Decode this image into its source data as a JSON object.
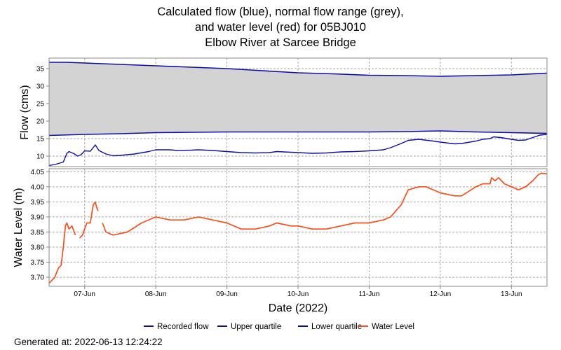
{
  "title_lines": [
    "Calculated flow (blue), normal flow range (grey),",
    "and water level (red) for 05BJ010",
    "Elbow River at Sarcee Bridge"
  ],
  "footer": {
    "generated": "Generated at: 2022-06-13 12:24:22"
  },
  "colors": {
    "flow": "#0d0dab",
    "range": "#d3d3d3",
    "level": "#fc4d1a",
    "grid": "#aaaaaa"
  },
  "chart_data": [
    {
      "type": "line",
      "ylabel": "Flow (cms)",
      "ylim": [
        7,
        38
      ],
      "yticks": [
        10,
        15,
        20,
        25,
        30,
        35
      ],
      "grid": true,
      "series": [
        {
          "name": "Upper quartile",
          "values": [
            [
              6.5,
              36.8
            ],
            [
              6.75,
              36.8
            ],
            [
              7.0,
              36.6
            ],
            [
              7.5,
              36.2
            ],
            [
              8.0,
              35.8
            ],
            [
              8.5,
              35.4
            ],
            [
              9.0,
              35.0
            ],
            [
              9.5,
              34.4
            ],
            [
              10.0,
              33.8
            ],
            [
              10.5,
              33.5
            ],
            [
              11.0,
              33.1
            ],
            [
              11.5,
              33.0
            ],
            [
              12.0,
              32.8
            ],
            [
              12.5,
              33.0
            ],
            [
              13.0,
              33.2
            ],
            [
              13.5,
              33.7
            ]
          ]
        },
        {
          "name": "Lower quartile",
          "values": [
            [
              6.5,
              15.9
            ],
            [
              7.0,
              16.2
            ],
            [
              7.5,
              16.4
            ],
            [
              8.0,
              16.7
            ],
            [
              8.5,
              16.8
            ],
            [
              9.0,
              16.9
            ],
            [
              9.5,
              16.9
            ],
            [
              10.0,
              16.9
            ],
            [
              10.5,
              16.9
            ],
            [
              11.0,
              16.9
            ],
            [
              11.5,
              17.0
            ],
            [
              12.0,
              17.2
            ],
            [
              12.5,
              16.9
            ],
            [
              13.0,
              16.7
            ],
            [
              13.5,
              16.5
            ]
          ]
        },
        {
          "name": "Recorded flow",
          "values": [
            [
              6.5,
              7.3
            ],
            [
              6.6,
              7.7
            ],
            [
              6.7,
              8.3
            ],
            [
              6.75,
              10.8
            ],
            [
              6.78,
              11.3
            ],
            [
              6.85,
              10.7
            ],
            [
              6.9,
              10.0
            ],
            [
              6.95,
              10.4
            ],
            [
              7.0,
              11.5
            ],
            [
              7.08,
              11.4
            ],
            [
              7.15,
              13.2
            ],
            [
              7.2,
              11.6
            ],
            [
              7.3,
              10.6
            ],
            [
              7.4,
              10.1
            ],
            [
              7.5,
              10.2
            ],
            [
              7.7,
              10.6
            ],
            [
              7.9,
              11.3
            ],
            [
              8.0,
              11.8
            ],
            [
              8.2,
              11.8
            ],
            [
              8.3,
              11.6
            ],
            [
              8.5,
              11.7
            ],
            [
              8.6,
              11.8
            ],
            [
              8.8,
              11.6
            ],
            [
              9.0,
              11.3
            ],
            [
              9.2,
              11.0
            ],
            [
              9.4,
              10.9
            ],
            [
              9.6,
              11.0
            ],
            [
              9.7,
              11.3
            ],
            [
              10.0,
              11.0
            ],
            [
              10.2,
              10.8
            ],
            [
              10.4,
              10.9
            ],
            [
              10.6,
              11.2
            ],
            [
              10.8,
              11.3
            ],
            [
              11.0,
              11.5
            ],
            [
              11.2,
              11.8
            ],
            [
              11.3,
              12.4
            ],
            [
              11.45,
              13.6
            ],
            [
              11.55,
              14.5
            ],
            [
              11.7,
              14.8
            ],
            [
              11.9,
              14.3
            ],
            [
              12.0,
              14.0
            ],
            [
              12.2,
              13.5
            ],
            [
              12.3,
              13.6
            ],
            [
              12.5,
              14.3
            ],
            [
              12.6,
              14.8
            ],
            [
              12.7,
              15.0
            ],
            [
              12.75,
              15.5
            ],
            [
              12.85,
              15.3
            ],
            [
              13.0,
              14.8
            ],
            [
              13.1,
              14.5
            ],
            [
              13.2,
              14.6
            ],
            [
              13.3,
              15.3
            ],
            [
              13.4,
              16.0
            ],
            [
              13.5,
              16.2
            ]
          ]
        }
      ]
    },
    {
      "type": "line",
      "ylabel": "Water Level (m)",
      "xlabel": "Date (2022)",
      "ylim": [
        3.67,
        4.06
      ],
      "yticks": [
        "3.70",
        "3.75",
        "3.80",
        "3.85",
        "3.90",
        "3.95",
        "4.00",
        "4.05"
      ],
      "grid": true,
      "x_tick_labels": [
        "07-Jun",
        "08-Jun",
        "09-Jun",
        "10-Jun",
        "11-Jun",
        "12-Jun",
        "13-Jun"
      ],
      "series": [
        {
          "name": "Water Level",
          "segments": [
            [
              [
                6.5,
                3.68
              ],
              [
                6.58,
                3.7
              ],
              [
                6.63,
                3.73
              ],
              [
                6.67,
                3.74
              ],
              [
                6.7,
                3.8
              ],
              [
                6.73,
                3.87
              ],
              [
                6.75,
                3.88
              ],
              [
                6.78,
                3.86
              ],
              [
                6.82,
                3.87
              ],
              [
                6.87,
                3.84
              ]
            ],
            [
              [
                6.93,
                3.83
              ],
              [
                6.97,
                3.84
              ],
              [
                7.0,
                3.86
              ],
              [
                7.03,
                3.88
              ],
              [
                7.08,
                3.88
              ],
              [
                7.12,
                3.94
              ],
              [
                7.15,
                3.95
              ],
              [
                7.17,
                3.93
              ],
              [
                7.19,
                3.92
              ]
            ],
            [
              [
                7.25,
                3.88
              ],
              [
                7.3,
                3.85
              ],
              [
                7.4,
                3.84
              ],
              [
                7.6,
                3.85
              ],
              [
                7.8,
                3.88
              ],
              [
                8.0,
                3.9
              ],
              [
                8.2,
                3.89
              ],
              [
                8.4,
                3.89
              ],
              [
                8.6,
                3.9
              ],
              [
                8.8,
                3.89
              ],
              [
                9.0,
                3.88
              ],
              [
                9.2,
                3.86
              ],
              [
                9.4,
                3.86
              ],
              [
                9.6,
                3.87
              ],
              [
                9.7,
                3.88
              ],
              [
                9.9,
                3.87
              ],
              [
                10.0,
                3.87
              ],
              [
                10.2,
                3.86
              ],
              [
                10.4,
                3.86
              ],
              [
                10.6,
                3.87
              ],
              [
                10.8,
                3.88
              ],
              [
                11.0,
                3.88
              ],
              [
                11.2,
                3.89
              ],
              [
                11.3,
                3.9
              ],
              [
                11.45,
                3.94
              ],
              [
                11.55,
                3.99
              ],
              [
                11.7,
                4.0
              ],
              [
                11.8,
                4.0
              ],
              [
                12.0,
                3.98
              ],
              [
                12.2,
                3.97
              ],
              [
                12.3,
                3.97
              ],
              [
                12.5,
                4.0
              ],
              [
                12.6,
                4.01
              ],
              [
                12.7,
                4.01
              ],
              [
                12.72,
                4.03
              ],
              [
                12.77,
                4.02
              ],
              [
                12.82,
                4.03
              ],
              [
                12.9,
                4.01
              ],
              [
                13.0,
                4.0
              ],
              [
                13.1,
                3.99
              ],
              [
                13.2,
                4.0
              ],
              [
                13.3,
                4.02
              ],
              [
                13.38,
                4.04
              ],
              [
                13.42,
                4.045
              ],
              [
                13.5,
                4.043
              ]
            ]
          ]
        }
      ]
    }
  ],
  "legend": [
    "Recorded flow",
    "Upper quartile",
    "Lower quartile",
    "Water Level"
  ]
}
